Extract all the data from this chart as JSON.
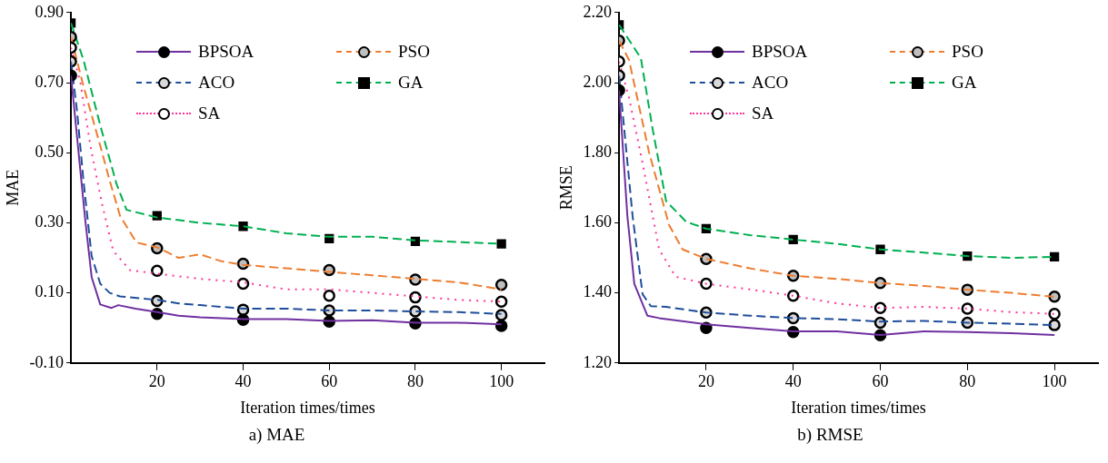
{
  "chart_data": [
    {
      "type": "line",
      "title": "a) MAE",
      "xlabel": "Iteration times/times",
      "ylabel": "MAE",
      "xlim": [
        0,
        110
      ],
      "xticks": [
        20,
        40,
        60,
        80,
        100
      ],
      "ylim": [
        -0.1,
        0.9
      ],
      "yticks": [
        {
          "value": -0.1,
          "label": "-0.10"
        },
        {
          "value": 0.1,
          "label": "0.10"
        },
        {
          "value": 0.3,
          "label": "0.30"
        },
        {
          "value": 0.5,
          "label": "0.50"
        },
        {
          "value": 0.7,
          "label": "0.70"
        },
        {
          "value": 0.9,
          "label": "0.90"
        }
      ],
      "legend": "top",
      "series": [
        {
          "name": "BPSOA",
          "color": "#7030a0",
          "line_style": "solid",
          "x": [
            0,
            3.3,
            4.8,
            6.8,
            9.4,
            11,
            15,
            20,
            25,
            30,
            35,
            40,
            50,
            60,
            70,
            80,
            90,
            100
          ],
          "values": [
            0.72,
            0.31,
            0.145,
            0.067,
            0.057,
            0.065,
            0.055,
            0.045,
            0.035,
            0.03,
            0.028,
            0.025,
            0.025,
            0.02,
            0.022,
            0.015,
            0.015,
            0.01
          ]
        },
        {
          "type": "scatter",
          "color": "#000000",
          "marker": "circle",
          "x": [
            0,
            20,
            40,
            60,
            80,
            100
          ],
          "values": [
            0.72,
            0.04,
            0.023,
            0.018,
            0.013,
            0.006
          ]
        },
        {
          "name": "ACO",
          "color": "#1f4e9a",
          "line_style": "dashed",
          "x": [
            0,
            1.4,
            2.9,
            4.8,
            6.8,
            9,
            11.4,
            20,
            25,
            30,
            40,
            50,
            60,
            70,
            80,
            90,
            100
          ],
          "values": [
            0.76,
            0.62,
            0.42,
            0.205,
            0.126,
            0.1,
            0.09,
            0.08,
            0.07,
            0.065,
            0.055,
            0.055,
            0.05,
            0.05,
            0.047,
            0.045,
            0.04
          ]
        },
        {
          "type": "scatter",
          "color": "#d9d9d9",
          "marker": "circle",
          "x": [
            0,
            20,
            40,
            60,
            80,
            100
          ],
          "values": [
            0.76,
            0.077,
            0.052,
            0.05,
            0.047,
            0.037
          ]
        },
        {
          "name": "SA",
          "color": "#ff3399",
          "line_style": "dotted",
          "x": [
            0,
            2.2,
            4.5,
            7.1,
            9.8,
            13.7,
            20,
            30,
            40,
            50,
            60,
            70,
            80,
            90,
            100
          ],
          "values": [
            0.8,
            0.7,
            0.52,
            0.36,
            0.22,
            0.165,
            0.155,
            0.14,
            0.13,
            0.11,
            0.11,
            0.1,
            0.09,
            0.08,
            0.075
          ]
        },
        {
          "type": "scatter",
          "color": "#ffffff",
          "marker": "circle",
          "x": [
            0,
            20,
            40,
            60,
            80,
            100
          ],
          "values": [
            0.8,
            0.163,
            0.126,
            0.092,
            0.087,
            0.075
          ]
        },
        {
          "name": "PSO",
          "color": "#ed7d31",
          "line_style": "dashed",
          "x": [
            0,
            2.9,
            6.8,
            9,
            11.4,
            15.2,
            20,
            25,
            30,
            35,
            40,
            50,
            60,
            70,
            80,
            90,
            100
          ],
          "values": [
            0.83,
            0.69,
            0.52,
            0.42,
            0.32,
            0.244,
            0.23,
            0.2,
            0.21,
            0.19,
            0.18,
            0.17,
            0.16,
            0.15,
            0.14,
            0.13,
            0.11
          ]
        },
        {
          "type": "scatter",
          "color": "#bfbfbf",
          "marker": "circle",
          "x": [
            0,
            20,
            40,
            60,
            80,
            100
          ],
          "values": [
            0.83,
            0.227,
            0.183,
            0.165,
            0.138,
            0.123
          ]
        },
        {
          "name": "GA",
          "color": "#00b050",
          "line_style": "dashed",
          "x": [
            0,
            2.9,
            6.8,
            10.6,
            12.9,
            20,
            30,
            40,
            50,
            60,
            70,
            80,
            90,
            100
          ],
          "values": [
            0.87,
            0.765,
            0.578,
            0.41,
            0.337,
            0.315,
            0.3,
            0.29,
            0.27,
            0.26,
            0.26,
            0.25,
            0.245,
            0.24
          ]
        },
        {
          "type": "scatter",
          "color": "#000000",
          "marker": "square",
          "x": [
            0,
            20,
            40,
            60,
            80,
            100
          ],
          "values": [
            0.87,
            0.32,
            0.29,
            0.255,
            0.247,
            0.24
          ]
        }
      ]
    },
    {
      "type": "line",
      "title": "b) RMSE",
      "xlabel": "Iteration times/times",
      "ylabel": "RMSE",
      "xlim": [
        0,
        110
      ],
      "xticks": [
        20,
        40,
        60,
        80,
        100
      ],
      "ylim": [
        1.2,
        2.2
      ],
      "yticks": [
        {
          "value": 1.2,
          "label": "1.20"
        },
        {
          "value": 1.4,
          "label": "1.40"
        },
        {
          "value": 1.6,
          "label": "1.60"
        },
        {
          "value": 1.8,
          "label": "1.80"
        },
        {
          "value": 2.0,
          "label": "2.00"
        },
        {
          "value": 2.2,
          "label": "2.20"
        }
      ],
      "legend": "top",
      "series": [
        {
          "name": "BPSOA",
          "color": "#7030a0",
          "line_style": "solid",
          "x": [
            0,
            1.9,
            3.5,
            6.5,
            9.2,
            20,
            30,
            40,
            50,
            60,
            70,
            80,
            90,
            100
          ],
          "values": [
            1.978,
            1.62,
            1.426,
            1.335,
            1.328,
            1.31,
            1.3,
            1.29,
            1.29,
            1.28,
            1.29,
            1.288,
            1.285,
            1.28
          ]
        },
        {
          "type": "scatter",
          "color": "#000000",
          "marker": "circle",
          "x": [
            0,
            20,
            40,
            60
          ],
          "values": [
            1.978,
            1.3,
            1.288,
            1.279
          ]
        },
        {
          "name": "ACO",
          "color": "#1f4e9a",
          "line_style": "dashed",
          "x": [
            0,
            3.1,
            5.4,
            7.3,
            10.8,
            20,
            30,
            40,
            50,
            60,
            70,
            80,
            90,
            100
          ],
          "values": [
            2.02,
            1.62,
            1.396,
            1.362,
            1.36,
            1.344,
            1.335,
            1.328,
            1.325,
            1.318,
            1.32,
            1.315,
            1.312,
            1.308
          ]
        },
        {
          "type": "scatter",
          "color": "#d9d9d9",
          "marker": "circle",
          "x": [
            0,
            20,
            40,
            60,
            80,
            100
          ],
          "values": [
            2.02,
            1.344,
            1.328,
            1.315,
            1.315,
            1.308
          ]
        },
        {
          "name": "SA",
          "color": "#ff3399",
          "line_style": "dotted",
          "x": [
            0,
            2.3,
            5.4,
            9.2,
            13,
            20,
            30,
            40,
            50,
            60,
            70,
            80,
            90,
            100
          ],
          "values": [
            2.06,
            1.956,
            1.77,
            1.524,
            1.446,
            1.426,
            1.41,
            1.392,
            1.37,
            1.357,
            1.36,
            1.355,
            1.345,
            1.34
          ]
        },
        {
          "type": "scatter",
          "color": "#ffffff",
          "marker": "circle",
          "x": [
            0,
            20,
            40,
            60,
            80,
            100
          ],
          "values": [
            2.06,
            1.426,
            1.392,
            1.357,
            1.355,
            1.34
          ]
        },
        {
          "name": "PSO",
          "color": "#ed7d31",
          "line_style": "dashed",
          "x": [
            0,
            2.3,
            6.9,
            11.5,
            14.6,
            20,
            30,
            40,
            50,
            60,
            70,
            80,
            90,
            100
          ],
          "values": [
            2.12,
            2.064,
            1.8,
            1.593,
            1.524,
            1.497,
            1.47,
            1.449,
            1.44,
            1.428,
            1.42,
            1.409,
            1.4,
            1.389
          ]
        },
        {
          "type": "scatter",
          "color": "#bfbfbf",
          "marker": "circle",
          "x": [
            0,
            20,
            40,
            60,
            80,
            100
          ],
          "values": [
            2.12,
            1.497,
            1.449,
            1.428,
            1.409,
            1.389
          ]
        },
        {
          "name": "GA",
          "color": "#00b050",
          "line_style": "dashed",
          "x": [
            0,
            5,
            7.7,
            10.8,
            15.4,
            20,
            30,
            40,
            50,
            60,
            70,
            80,
            90,
            100
          ],
          "values": [
            2.165,
            2.07,
            1.868,
            1.662,
            1.603,
            1.583,
            1.565,
            1.552,
            1.54,
            1.524,
            1.515,
            1.505,
            1.5,
            1.503
          ]
        },
        {
          "type": "scatter",
          "color": "#000000",
          "marker": "square",
          "x": [
            0,
            20,
            40,
            60,
            80,
            100
          ],
          "values": [
            2.165,
            1.583,
            1.552,
            1.524,
            1.505,
            1.503
          ]
        }
      ]
    }
  ]
}
